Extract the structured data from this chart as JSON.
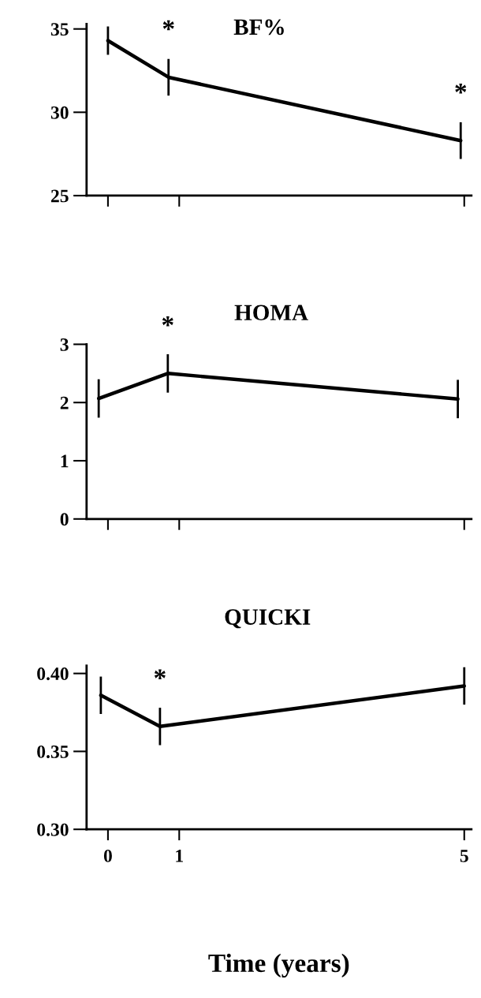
{
  "chart_data": [
    {
      "type": "line",
      "title": "BF%",
      "x": [
        0,
        0.85,
        4.95
      ],
      "values": [
        34.3,
        32.1,
        28.3
      ],
      "errors": [
        0.85,
        1.1,
        1.1
      ],
      "color": "#000000",
      "xlim": [
        -0.3,
        5.1
      ],
      "xticks": [
        0,
        1,
        5
      ],
      "ylim": [
        25,
        35.3
      ],
      "yticks": [
        25,
        30,
        35
      ],
      "tick_labels": "y",
      "marker": "none",
      "grid": false,
      "annotations": [
        {
          "text": "*",
          "x": 0.85,
          "y": 32.1
        },
        {
          "text": "*",
          "x": 4.95,
          "y": 28.3
        }
      ]
    },
    {
      "type": "line",
      "title": "HOMA",
      "x": [
        -0.13,
        0.84,
        4.91
      ],
      "values": [
        2.07,
        2.5,
        2.06
      ],
      "errors": [
        0.33,
        0.33,
        0.33
      ],
      "color": "#000000",
      "xlim": [
        -0.3,
        5.1
      ],
      "xticks": [
        0,
        1,
        5
      ],
      "ylim": [
        0,
        3
      ],
      "yticks": [
        0,
        1,
        2,
        3
      ],
      "tick_labels": "y",
      "marker": "none",
      "grid": false,
      "annotations": [
        {
          "text": "*",
          "x": 0.84,
          "y": 2.5
        }
      ]
    },
    {
      "type": "line",
      "title": "QUICKI",
      "xlabel": "Time (years)",
      "x": [
        -0.1,
        0.73,
        5.0
      ],
      "values": [
        0.386,
        0.366,
        0.392
      ],
      "errors": [
        0.012,
        0.012,
        0.012
      ],
      "color": "#000000",
      "xlim": [
        -0.3,
        5.1
      ],
      "xticks": [
        0,
        1,
        5
      ],
      "ylim": [
        0.3,
        0.405
      ],
      "yticks": [
        {
          "value": 0.3,
          "label": "0.30"
        },
        {
          "value": 0.35,
          "label": "0.35"
        },
        {
          "value": 0.4,
          "label": "0.40"
        }
      ],
      "marker": "none",
      "grid": false,
      "annotations": [
        {
          "text": "*",
          "x": 0.73,
          "y": 0.366
        }
      ]
    }
  ]
}
